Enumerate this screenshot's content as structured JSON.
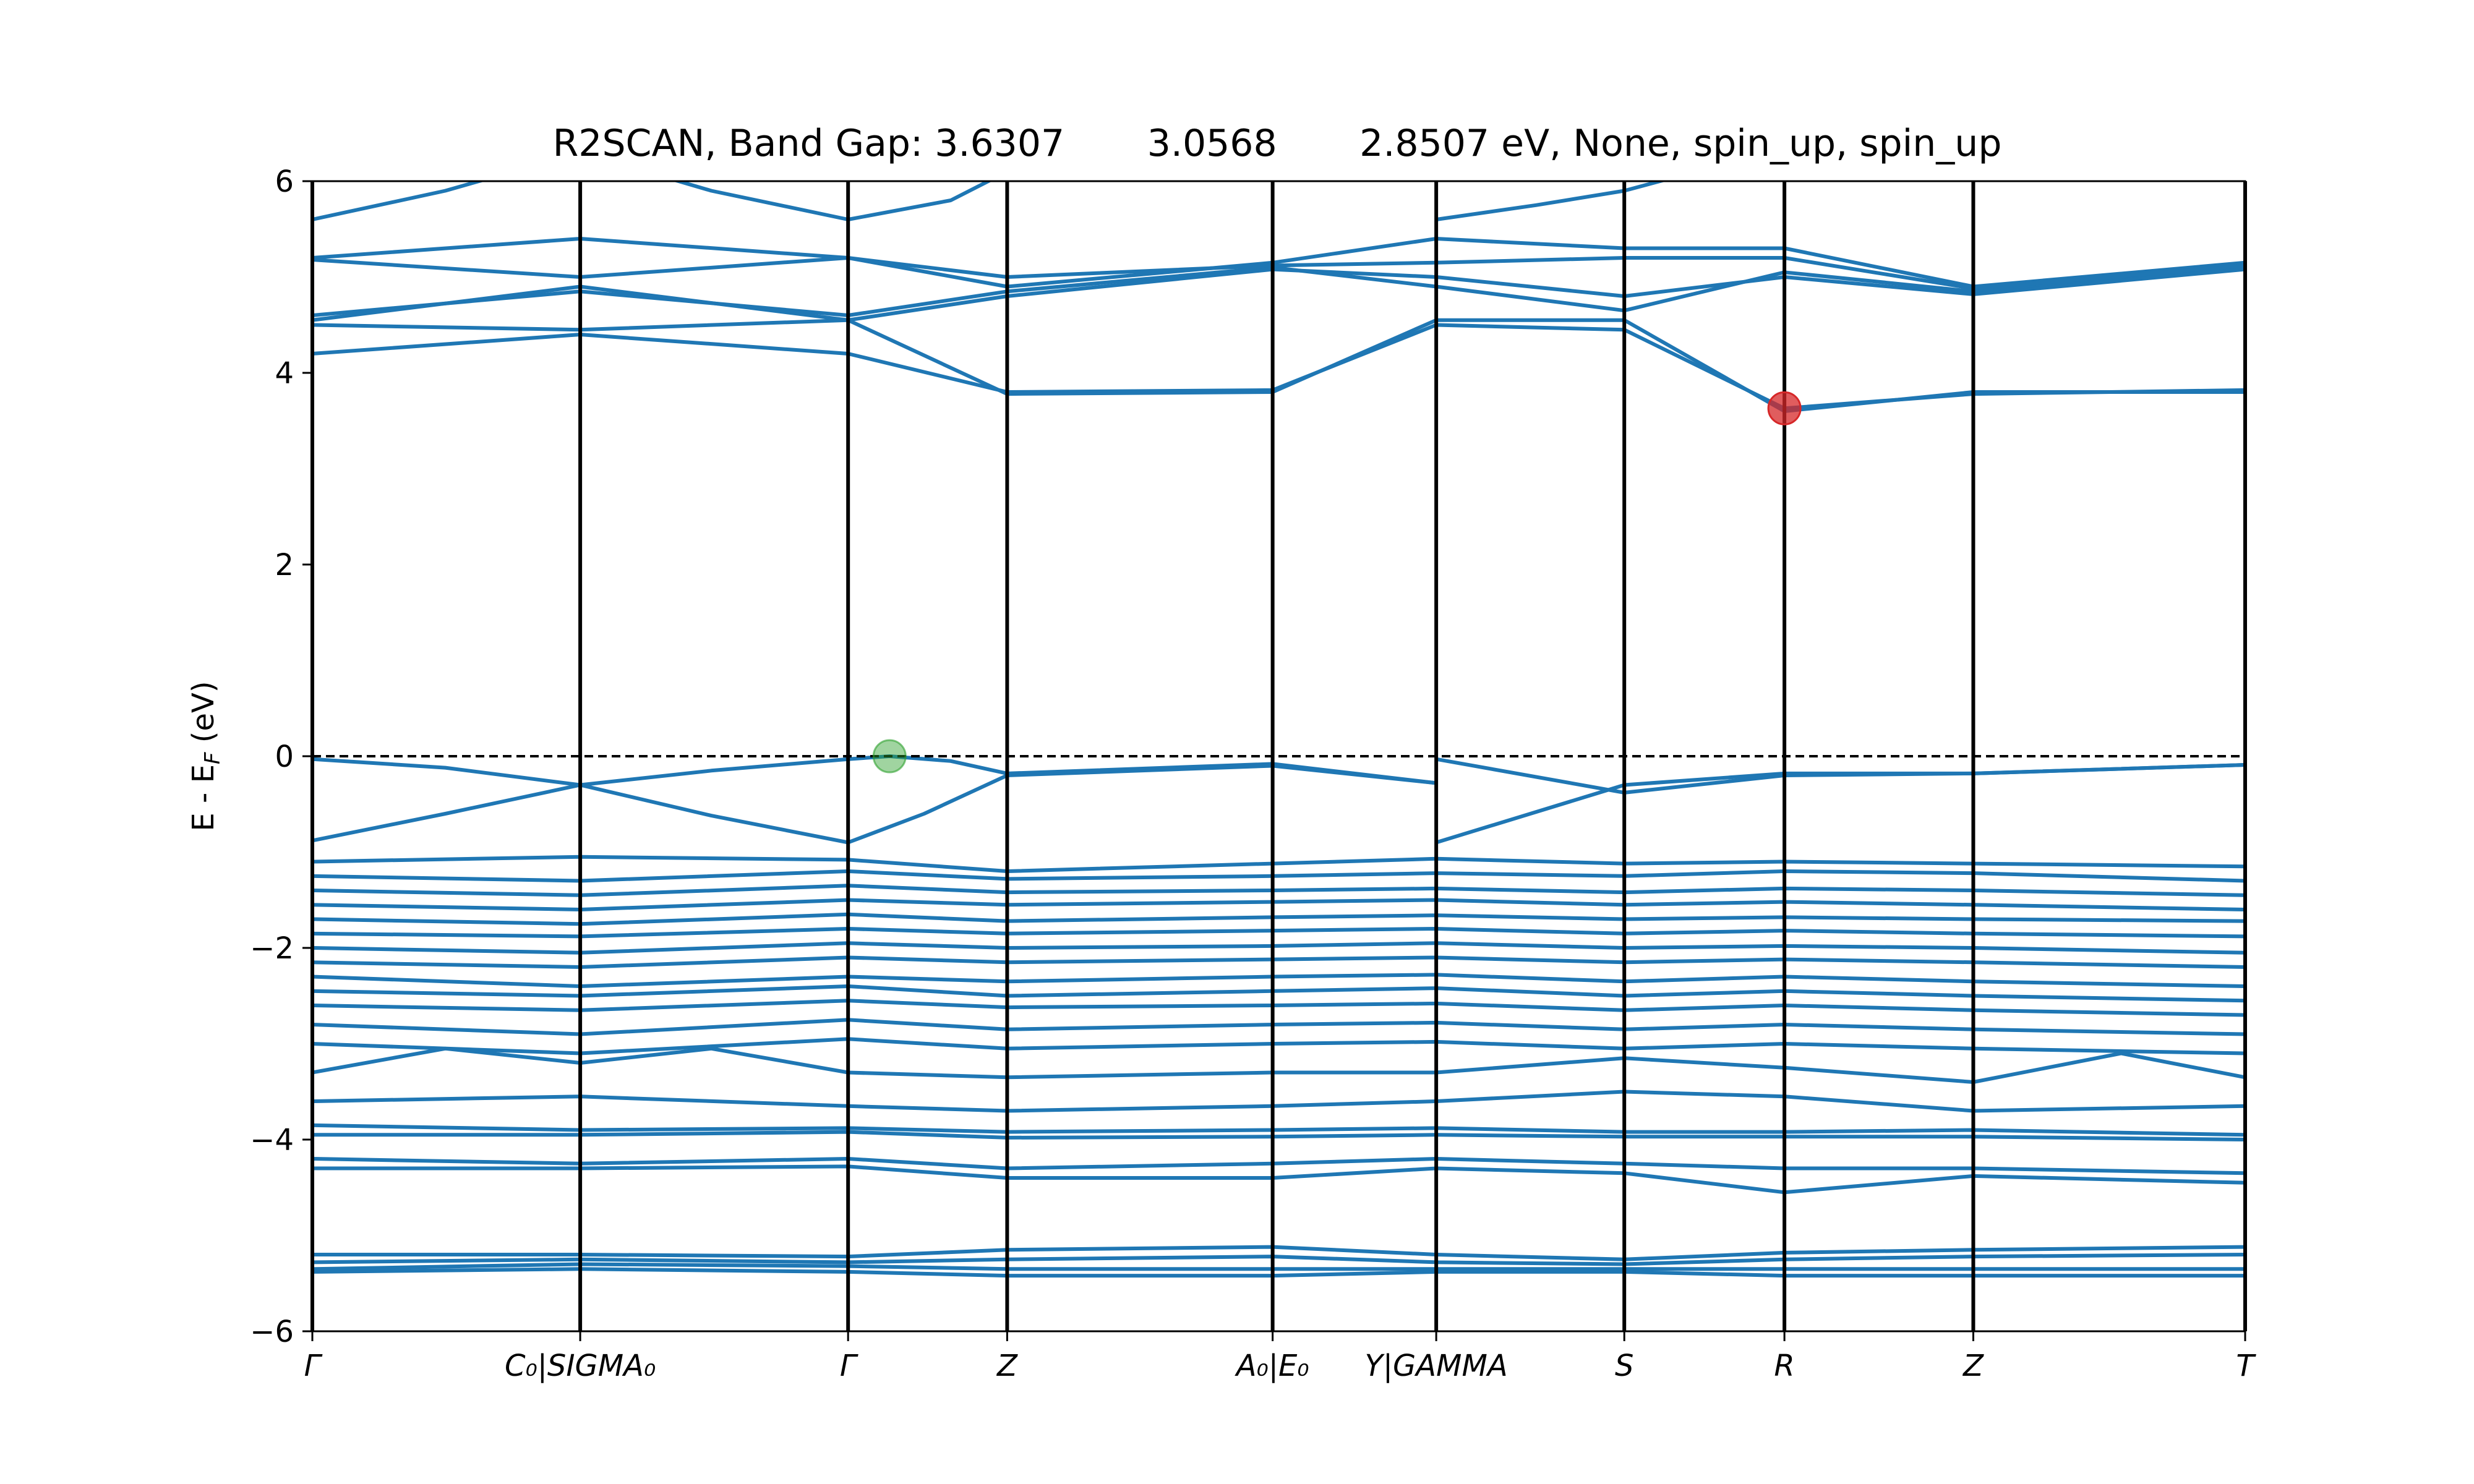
{
  "chart_data": {
    "type": "line",
    "title": "R2SCAN, Band Gap: 3.6307       3.0568       2.8507 eV, None, spin_up, spin_up",
    "ylabel": "E - E_F (eV)",
    "ylim": [
      -6,
      6
    ],
    "xlim": [
      0,
      7.266
    ],
    "yticks": [
      -6,
      -4,
      -2,
      0,
      2,
      4,
      6
    ],
    "ytick_labels": [
      "−6",
      "−4",
      "−2",
      "0",
      "2",
      "4",
      "6"
    ],
    "fermi_level": 0,
    "kpoint_positions": [
      0,
      1.007,
      2.014,
      2.612,
      3.61,
      4.225,
      4.932,
      5.534,
      6.244,
      7.266
    ],
    "kpoint_labels": [
      "Γ",
      "C₀|SIGMA₀",
      "Γ",
      "Z",
      "A₀|E₀",
      "Y|GAMMA",
      "S",
      "R",
      "Z",
      "T"
    ],
    "series_color": "#1f77b4",
    "vbm": {
      "x": 2.17,
      "y": 0.0,
      "color": "#2ca02c"
    },
    "cbm": {
      "x": 5.534,
      "y": 3.63,
      "color": "#d62728"
    },
    "bands": [
      {
        "x": [
          0,
          0.5,
          1.007,
          1.5,
          2.014,
          2.17,
          2.4,
          2.612,
          3.61,
          4.225
        ],
        "y": [
          -0.03,
          -0.12,
          -0.3,
          -0.15,
          -0.03,
          0.0,
          -0.05,
          -0.18,
          -0.08,
          -0.28
        ]
      },
      {
        "x": [
          0,
          0.5,
          1.007,
          1.5,
          2.014,
          2.3,
          2.612,
          3.61,
          4.225
        ],
        "y": [
          -0.88,
          -0.6,
          -0.3,
          -0.62,
          -0.9,
          -0.6,
          -0.2,
          -0.1,
          -0.28
        ]
      },
      {
        "x": [
          4.225,
          4.932,
          5.534,
          6.244,
          7.266
        ],
        "y": [
          -0.9,
          -0.3,
          -0.18,
          -0.18,
          -0.09
        ]
      },
      {
        "x": [
          4.225,
          4.932,
          5.534,
          6.244,
          7.266
        ],
        "y": [
          -0.03,
          -0.38,
          -0.2,
          -0.18,
          -0.09
        ]
      },
      {
        "x": [
          0,
          1.007,
          2.014,
          2.612,
          3.61,
          4.225,
          4.932,
          5.534,
          6.244,
          7.266
        ],
        "y": [
          -1.1,
          -1.05,
          -1.08,
          -1.2,
          -1.12,
          -1.07,
          -1.12,
          -1.1,
          -1.12,
          -1.15
        ]
      },
      {
        "x": [
          0,
          1.007,
          2.014,
          2.612,
          3.61,
          4.225,
          4.932,
          5.534,
          6.244,
          7.266
        ],
        "y": [
          -1.25,
          -1.3,
          -1.2,
          -1.28,
          -1.25,
          -1.22,
          -1.25,
          -1.2,
          -1.22,
          -1.3
        ]
      },
      {
        "x": [
          0,
          1.007,
          2.014,
          2.612,
          3.61,
          4.225,
          4.932,
          5.534,
          6.244,
          7.266
        ],
        "y": [
          -1.4,
          -1.45,
          -1.35,
          -1.42,
          -1.4,
          -1.38,
          -1.42,
          -1.38,
          -1.4,
          -1.45
        ]
      },
      {
        "x": [
          0,
          1.007,
          2.014,
          2.612,
          3.61,
          4.225,
          4.932,
          5.534,
          6.244,
          7.266
        ],
        "y": [
          -1.55,
          -1.6,
          -1.5,
          -1.55,
          -1.52,
          -1.5,
          -1.55,
          -1.52,
          -1.55,
          -1.6
        ]
      },
      {
        "x": [
          0,
          1.007,
          2.014,
          2.612,
          3.61,
          4.225,
          4.932,
          5.534,
          6.244,
          7.266
        ],
        "y": [
          -1.7,
          -1.75,
          -1.65,
          -1.72,
          -1.68,
          -1.66,
          -1.7,
          -1.68,
          -1.7,
          -1.72
        ]
      },
      {
        "x": [
          0,
          1.007,
          2.014,
          2.612,
          3.61,
          4.225,
          4.932,
          5.534,
          6.244,
          7.266
        ],
        "y": [
          -1.85,
          -1.88,
          -1.8,
          -1.85,
          -1.82,
          -1.8,
          -1.85,
          -1.82,
          -1.85,
          -1.88
        ]
      },
      {
        "x": [
          0,
          1.007,
          2.014,
          2.612,
          3.61,
          4.225,
          4.932,
          5.534,
          6.244,
          7.266
        ],
        "y": [
          -2.0,
          -2.05,
          -1.95,
          -2.0,
          -1.98,
          -1.95,
          -2.0,
          -1.98,
          -2.0,
          -2.05
        ]
      },
      {
        "x": [
          0,
          1.007,
          2.014,
          2.612,
          3.61,
          4.225,
          4.932,
          5.534,
          6.244,
          7.266
        ],
        "y": [
          -2.15,
          -2.2,
          -2.1,
          -2.15,
          -2.12,
          -2.1,
          -2.15,
          -2.12,
          -2.15,
          -2.2
        ]
      },
      {
        "x": [
          0,
          1.007,
          2.014,
          2.612,
          3.61,
          4.225,
          4.932,
          5.534,
          6.244,
          7.266
        ],
        "y": [
          -2.3,
          -2.4,
          -2.3,
          -2.35,
          -2.3,
          -2.28,
          -2.35,
          -2.3,
          -2.35,
          -2.4
        ]
      },
      {
        "x": [
          0,
          1.007,
          2.014,
          2.612,
          3.61,
          4.225,
          4.932,
          5.534,
          6.244,
          7.266
        ],
        "y": [
          -2.45,
          -2.5,
          -2.4,
          -2.5,
          -2.45,
          -2.42,
          -2.5,
          -2.45,
          -2.5,
          -2.55
        ]
      },
      {
        "x": [
          0,
          1.007,
          2.014,
          2.612,
          3.61,
          4.225,
          4.932,
          5.534,
          6.244,
          7.266
        ],
        "y": [
          -2.6,
          -2.65,
          -2.55,
          -2.62,
          -2.6,
          -2.58,
          -2.65,
          -2.6,
          -2.65,
          -2.7
        ]
      },
      {
        "x": [
          0,
          1.007,
          2.014,
          2.612,
          3.61,
          4.225,
          4.932,
          5.534,
          6.244,
          7.266
        ],
        "y": [
          -2.8,
          -2.9,
          -2.75,
          -2.85,
          -2.8,
          -2.78,
          -2.85,
          -2.8,
          -2.85,
          -2.9
        ]
      },
      {
        "x": [
          0,
          1.007,
          2.014,
          2.612,
          3.61,
          4.225,
          4.932,
          5.534,
          6.244,
          7.266
        ],
        "y": [
          -3.0,
          -3.1,
          -2.95,
          -3.05,
          -3.0,
          -2.98,
          -3.05,
          -3.0,
          -3.05,
          -3.1
        ]
      },
      {
        "x": [
          0,
          0.5,
          1.007,
          1.5,
          2.014,
          2.612,
          3.61,
          4.225,
          4.932,
          5.534,
          6.244,
          6.8,
          7.266
        ],
        "y": [
          -3.3,
          -3.05,
          -3.2,
          -3.05,
          -3.3,
          -3.35,
          -3.3,
          -3.3,
          -3.15,
          -3.25,
          -3.4,
          -3.1,
          -3.35
        ]
      },
      {
        "x": [
          0,
          1.007,
          2.014,
          2.612,
          3.61,
          4.225,
          4.932,
          5.534,
          6.244,
          7.266
        ],
        "y": [
          -3.6,
          -3.55,
          -3.65,
          -3.7,
          -3.65,
          -3.6,
          -3.5,
          -3.55,
          -3.7,
          -3.65
        ]
      },
      {
        "x": [
          0,
          1.007,
          2.014,
          2.612,
          3.61,
          4.225,
          4.932,
          5.534,
          6.244,
          7.266
        ],
        "y": [
          -3.85,
          -3.9,
          -3.88,
          -3.92,
          -3.9,
          -3.88,
          -3.92,
          -3.92,
          -3.9,
          -3.95
        ]
      },
      {
        "x": [
          0,
          1.007,
          2.014,
          2.612,
          3.61,
          4.225,
          4.932,
          5.534,
          6.244,
          7.266
        ],
        "y": [
          -3.95,
          -3.95,
          -3.92,
          -3.98,
          -3.97,
          -3.95,
          -3.97,
          -3.97,
          -3.97,
          -4.0
        ]
      },
      {
        "x": [
          0,
          1.007,
          2.014,
          2.612,
          3.61,
          4.225,
          4.932,
          5.534,
          6.244,
          7.266
        ],
        "y": [
          -4.2,
          -4.25,
          -4.2,
          -4.3,
          -4.25,
          -4.2,
          -4.25,
          -4.3,
          -4.3,
          -4.35
        ]
      },
      {
        "x": [
          0,
          1.007,
          2.014,
          2.612,
          3.61,
          4.225,
          4.932,
          5.534,
          6.244,
          7.266
        ],
        "y": [
          -4.3,
          -4.3,
          -4.28,
          -4.4,
          -4.4,
          -4.3,
          -4.35,
          -4.55,
          -4.38,
          -4.45
        ]
      },
      {
        "x": [
          0,
          1.007,
          2.014,
          2.612,
          3.61,
          4.225,
          4.932,
          5.534,
          6.244,
          7.266
        ],
        "y": [
          -5.2,
          -5.2,
          -5.22,
          -5.15,
          -5.12,
          -5.2,
          -5.25,
          -5.18,
          -5.15,
          -5.12
        ]
      },
      {
        "x": [
          0,
          1.007,
          2.014,
          2.612,
          3.61,
          4.225,
          4.932,
          5.534,
          6.244,
          7.266
        ],
        "y": [
          -5.28,
          -5.25,
          -5.28,
          -5.25,
          -5.22,
          -5.28,
          -5.3,
          -5.25,
          -5.22,
          -5.2
        ]
      },
      {
        "x": [
          0,
          1.007,
          2.014,
          2.612,
          3.61,
          4.225,
          4.932,
          5.534,
          6.244,
          7.266
        ],
        "y": [
          -5.35,
          -5.3,
          -5.32,
          -5.35,
          -5.35,
          -5.35,
          -5.35,
          -5.35,
          -5.35,
          -5.35
        ]
      },
      {
        "x": [
          0,
          1.007,
          2.014,
          2.612,
          3.61,
          4.225,
          4.932,
          5.534,
          6.244,
          7.266
        ],
        "y": [
          -5.38,
          -5.35,
          -5.38,
          -5.42,
          -5.42,
          -5.38,
          -5.38,
          -5.42,
          -5.42,
          -5.42
        ]
      },
      {
        "x": [
          0,
          1.007,
          2.014,
          2.612,
          3.61,
          4.225,
          4.932,
          5.534,
          6.244,
          7.266
        ],
        "y": [
          4.2,
          4.4,
          4.2,
          3.8,
          3.82,
          4.5,
          4.45,
          3.63,
          3.78,
          3.82
        ]
      },
      {
        "x": [
          0,
          1.007,
          2.014,
          2.612,
          3.61,
          4.225,
          4.932,
          5.534,
          6.244,
          7.266
        ],
        "y": [
          4.5,
          4.45,
          4.55,
          3.78,
          3.8,
          4.55,
          4.55,
          3.6,
          3.8,
          3.8
        ]
      },
      {
        "x": [
          0,
          1.007,
          2.014,
          2.612,
          3.61,
          4.225,
          4.932,
          5.534,
          6.244,
          7.266
        ],
        "y": [
          4.6,
          4.85,
          4.6,
          4.85,
          5.1,
          4.9,
          4.65,
          5.05,
          4.85,
          5.1
        ]
      },
      {
        "x": [
          0,
          1.007,
          2.014,
          2.612,
          3.61,
          4.225,
          4.932,
          5.534,
          6.244,
          7.266
        ],
        "y": [
          4.55,
          4.9,
          4.55,
          4.8,
          5.08,
          5.0,
          4.8,
          5.0,
          4.82,
          5.08
        ]
      },
      {
        "x": [
          0,
          1.007,
          2.014,
          2.612,
          3.61,
          4.225,
          4.932,
          5.534,
          6.244,
          7.266
        ],
        "y": [
          5.2,
          5.4,
          5.2,
          4.9,
          5.15,
          5.4,
          5.3,
          5.3,
          4.9,
          5.15
        ]
      },
      {
        "x": [
          0,
          1.007,
          2.014,
          2.612,
          3.61,
          4.225,
          4.932,
          5.534,
          6.244,
          7.266
        ],
        "y": [
          5.18,
          5.0,
          5.2,
          5.0,
          5.12,
          5.15,
          5.2,
          5.2,
          4.88,
          5.12
        ]
      },
      {
        "x": [
          0,
          0.5,
          1.007,
          1.5,
          2.014,
          2.4,
          2.612
        ],
        "y": [
          5.6,
          5.9,
          6.3,
          5.9,
          5.6,
          5.8,
          6.1
        ]
      },
      {
        "x": [
          4.225,
          4.6,
          4.932,
          5.2
        ],
        "y": [
          5.6,
          5.75,
          5.9,
          6.1
        ]
      }
    ]
  }
}
